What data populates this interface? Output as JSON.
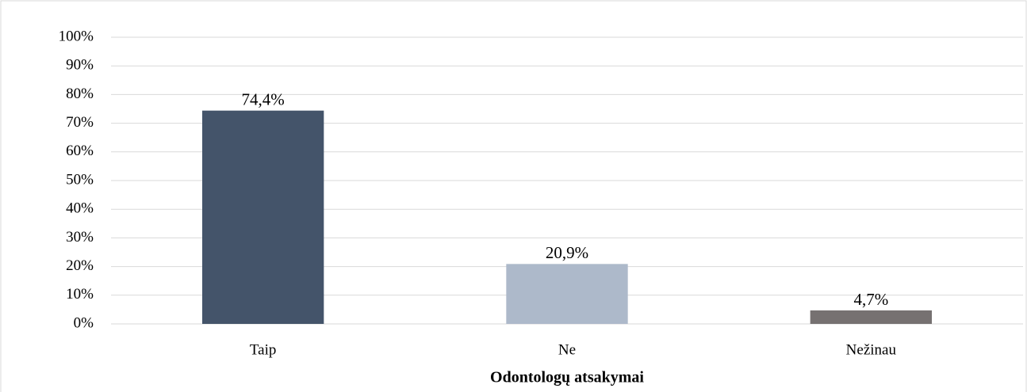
{
  "chart_data": {
    "type": "bar",
    "x_label": "Odontologų atsakymai",
    "categories": [
      "Taip",
      "Ne",
      "Nežinau"
    ],
    "values": [
      74.4,
      20.9,
      4.7
    ],
    "value_labels": [
      "74,4%",
      "20,9%",
      "4,7%"
    ],
    "colors": [
      "#44546a",
      "#adb9ca",
      "#767171"
    ],
    "ylim": [
      0,
      100
    ],
    "yticks": [
      {
        "value": 0,
        "label": "0%"
      },
      {
        "value": 10,
        "label": "10%"
      },
      {
        "value": 20,
        "label": "20%"
      },
      {
        "value": 30,
        "label": "30%"
      },
      {
        "value": 40,
        "label": "40%"
      },
      {
        "value": 50,
        "label": "50%"
      },
      {
        "value": 60,
        "label": "60%"
      },
      {
        "value": 70,
        "label": "70%"
      },
      {
        "value": 80,
        "label": "80%"
      },
      {
        "value": 90,
        "label": "90%"
      },
      {
        "value": 100,
        "label": "100%"
      }
    ],
    "grid": true
  }
}
